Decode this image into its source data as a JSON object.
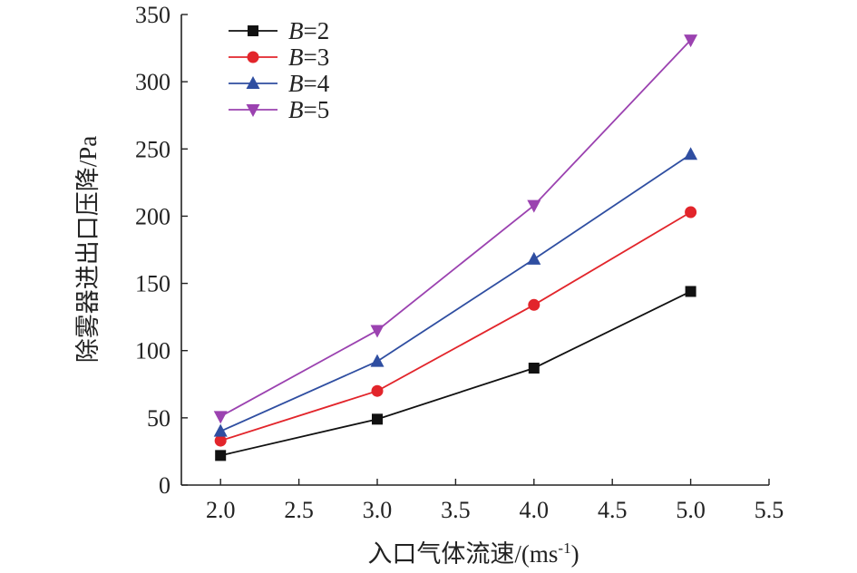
{
  "chart_data": {
    "type": "line",
    "xlabel": "入口气体流速/(ms",
    "xlabel_sup": "-1",
    "xlabel_end": ")",
    "ylabel": "除雾器进出口压降/Pa",
    "xlim": [
      1.75,
      5.5
    ],
    "ylim": [
      0,
      350
    ],
    "xticks": [
      2.0,
      2.5,
      3.0,
      3.5,
      4.0,
      4.5,
      5.0,
      5.5
    ],
    "xtick_labels": [
      "2.0",
      "2.5",
      "3.0",
      "3.5",
      "4.0",
      "4.5",
      "5.0",
      "5.5"
    ],
    "yticks": [
      0,
      50,
      100,
      150,
      200,
      250,
      300,
      350
    ],
    "ytick_labels": [
      "0",
      "50",
      "100",
      "150",
      "200",
      "250",
      "300",
      "350"
    ],
    "x": [
      2.0,
      3.0,
      4.0,
      5.0
    ],
    "legend_position": "top-left",
    "grid": false,
    "series": [
      {
        "name_var": "B",
        "name_rest": "=2",
        "marker": "square",
        "color": "#111111",
        "values": [
          22,
          49,
          87,
          144
        ]
      },
      {
        "name_var": "B",
        "name_rest": "=3",
        "marker": "circle",
        "color": "#e2252b",
        "values": [
          33,
          70,
          134,
          203
        ]
      },
      {
        "name_var": "B",
        "name_rest": "=4",
        "marker": "triangle-up",
        "color": "#2f4ea1",
        "values": [
          40,
          92,
          168,
          246
        ]
      },
      {
        "name_var": "B",
        "name_rest": "=5",
        "marker": "triangle-down",
        "color": "#9b42b0",
        "values": [
          51,
          115,
          208,
          331
        ]
      }
    ]
  }
}
